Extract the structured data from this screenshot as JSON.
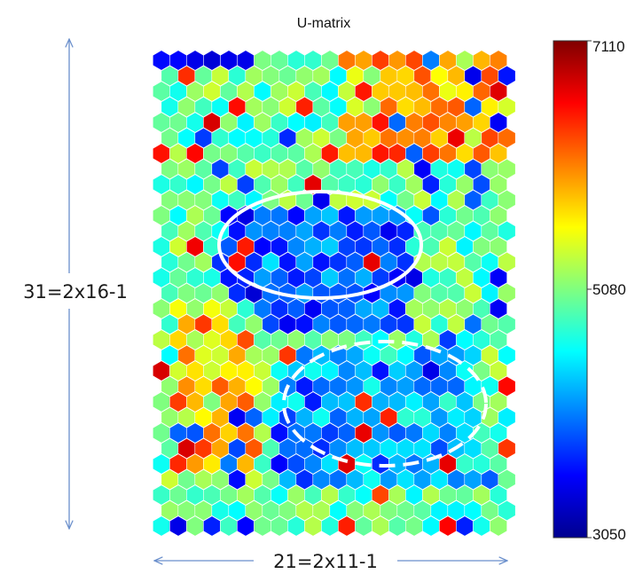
{
  "chart_data": {
    "type": "heatmap",
    "subtype": "hexagonal U-matrix",
    "title": "U-matrix",
    "grid": {
      "rows": 31,
      "cols": 21
    },
    "dimension_labels": {
      "vertical": "31=2x16-1",
      "horizontal": "21=2x11-1"
    },
    "colorbar": {
      "min": 3050,
      "mid": 5080,
      "max": 7110,
      "tick_labels": [
        "7110",
        "5080",
        "3050"
      ],
      "colormap": "jet"
    },
    "regions": [
      {
        "label": "low-distance cluster (solid ellipse)",
        "style": "solid",
        "approx_rows": [
          10,
          17
        ],
        "approx_cols": [
          4,
          14
        ]
      },
      {
        "label": "low-distance cluster (dashed ellipse)",
        "style": "dashed",
        "approx_rows": [
          19,
          27
        ],
        "approx_cols": [
          7,
          18
        ]
      }
    ],
    "hotspots": [
      {
        "approx_rows": [
          0,
          6
        ],
        "approx_cols": [
          11,
          20
        ],
        "level": "high"
      },
      {
        "approx_rows": [
          16,
          26
        ],
        "approx_cols": [
          1,
          5
        ],
        "level": "high"
      }
    ],
    "seed": 20917
  }
}
